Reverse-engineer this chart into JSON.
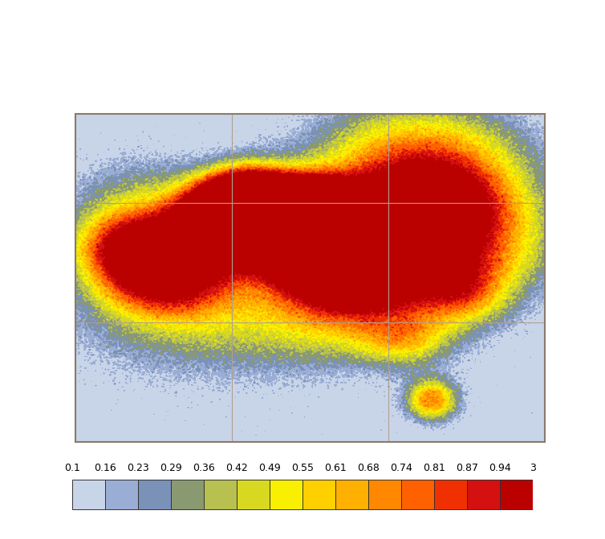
{
  "title": "",
  "lon_min": 60,
  "lon_max": 135,
  "lat_min": -15,
  "lat_max": 40,
  "colorbar_levels": [
    0.1,
    0.16,
    0.23,
    0.29,
    0.36,
    0.42,
    0.49,
    0.55,
    0.61,
    0.68,
    0.74,
    0.81,
    0.87,
    0.94,
    3
  ],
  "colorbar_colors": [
    "#c8d4e8",
    "#9aadd4",
    "#7a91b8",
    "#8a9a70",
    "#b8c050",
    "#d8d820",
    "#f8f000",
    "#ffd000",
    "#ffb000",
    "#ff8800",
    "#ff6000",
    "#f03000",
    "#d41010",
    "#bb0000"
  ],
  "grid_color": "#b0a090",
  "background_color": "#ffffff",
  "map_border_color": "#8a7a6a",
  "coastline_color": "#333333",
  "border_color": "#333333",
  "figsize": [
    7.54,
    6.72
  ],
  "dpi": 100,
  "smoke_centers": [
    {
      "lon": 100,
      "lat": 20,
      "intensity": 2.5,
      "spread_lon": 8,
      "spread_lat": 5
    },
    {
      "lon": 95,
      "lat": 22,
      "intensity": 3.0,
      "spread_lon": 6,
      "spread_lat": 4
    },
    {
      "lon": 105,
      "lat": 15,
      "intensity": 0.8,
      "spread_lon": 10,
      "spread_lat": 6
    },
    {
      "lon": 86,
      "lat": 24,
      "intensity": 2.0,
      "spread_lon": 5,
      "spread_lat": 4
    },
    {
      "lon": 75,
      "lat": 15,
      "intensity": 1.2,
      "spread_lon": 8,
      "spread_lat": 6
    },
    {
      "lon": 115,
      "lat": 30,
      "intensity": 0.7,
      "spread_lon": 12,
      "spread_lat": 8
    },
    {
      "lon": 120,
      "lat": 10,
      "intensity": 0.4,
      "spread_lon": 6,
      "spread_lat": 4
    },
    {
      "lon": 113,
      "lat": 2,
      "intensity": 0.3,
      "spread_lon": 5,
      "spread_lat": 3
    },
    {
      "lon": 117,
      "lat": -8,
      "intensity": 0.6,
      "spread_lon": 3,
      "spread_lat": 2
    },
    {
      "lon": 65,
      "lat": 10,
      "intensity": 0.5,
      "spread_lon": 5,
      "spread_lat": 4
    }
  ]
}
